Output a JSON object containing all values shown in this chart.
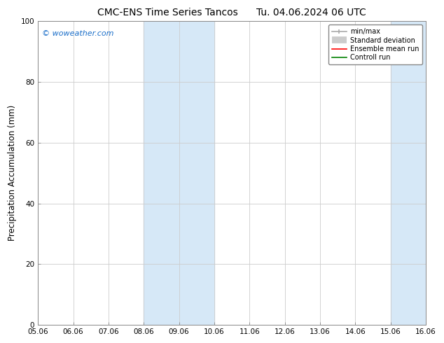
{
  "title_left": "CMC-ENS Time Series Tancos",
  "title_right": "Tu. 04.06.2024 06 UTC",
  "ylabel": "Precipitation Accumulation (mm)",
  "ylim": [
    0,
    100
  ],
  "yticks": [
    0,
    20,
    40,
    60,
    80,
    100
  ],
  "xtick_labels": [
    "05.06",
    "06.06",
    "07.06",
    "08.06",
    "09.06",
    "10.06",
    "11.06",
    "12.06",
    "13.06",
    "14.06",
    "15.06",
    "16.06"
  ],
  "shaded_regions": [
    {
      "xstart": 3,
      "xend": 5,
      "color": "#d6e8f7"
    },
    {
      "xstart": 10,
      "xend": 11,
      "color": "#d6e8f7"
    }
  ],
  "watermark_text": "© woweather.com",
  "watermark_color": "#1a6ec9",
  "legend_items": [
    {
      "label": "min/max",
      "color": "#aaaaaa",
      "lw": 1.5
    },
    {
      "label": "Standard deviation",
      "color": "#cccccc",
      "lw": 6
    },
    {
      "label": "Ensemble mean run",
      "color": "red",
      "lw": 1.5
    },
    {
      "label": "Controll run",
      "color": "green",
      "lw": 1.5
    }
  ],
  "bg_color": "#ffffff",
  "grid_color": "#cccccc",
  "spine_color": "#888888",
  "title_fontsize": 10,
  "tick_fontsize": 7.5,
  "ylabel_fontsize": 8.5,
  "watermark_fontsize": 8
}
